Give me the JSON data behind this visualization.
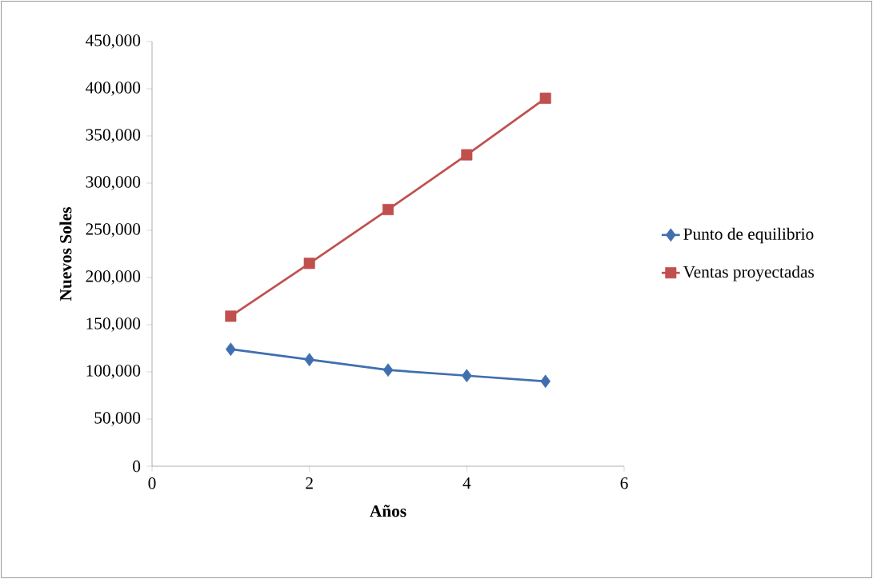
{
  "chart_data": {
    "type": "line",
    "xlabel": "Años",
    "ylabel": "Nuevos Soles",
    "x": [
      1,
      2,
      3,
      4,
      5
    ],
    "series": [
      {
        "name": "Punto de equilibrio",
        "color": "#3f6faf",
        "marker": "diamond",
        "values": [
          124000,
          113000,
          102000,
          96000,
          90000
        ]
      },
      {
        "name": "Ventas proyectadas",
        "color": "#c0504d",
        "marker": "square",
        "values": [
          159000,
          215000,
          272000,
          330000,
          390000
        ]
      }
    ],
    "xlim": [
      0,
      6
    ],
    "xticks": [
      0,
      2,
      4,
      6
    ],
    "ylim": [
      0,
      450000
    ],
    "yticks": [
      {
        "value": 0,
        "label": "0"
      },
      {
        "value": 50000,
        "label": "50,000"
      },
      {
        "value": 100000,
        "label": "100,000"
      },
      {
        "value": 150000,
        "label": "150,000"
      },
      {
        "value": 200000,
        "label": "200,000"
      },
      {
        "value": 250000,
        "label": "250,000"
      },
      {
        "value": 300000,
        "label": "300,000"
      },
      {
        "value": 350000,
        "label": "350,000"
      },
      {
        "value": 400000,
        "label": "400,000"
      },
      {
        "value": 450000,
        "label": "450,000"
      }
    ],
    "grid": false,
    "legend": "right"
  }
}
